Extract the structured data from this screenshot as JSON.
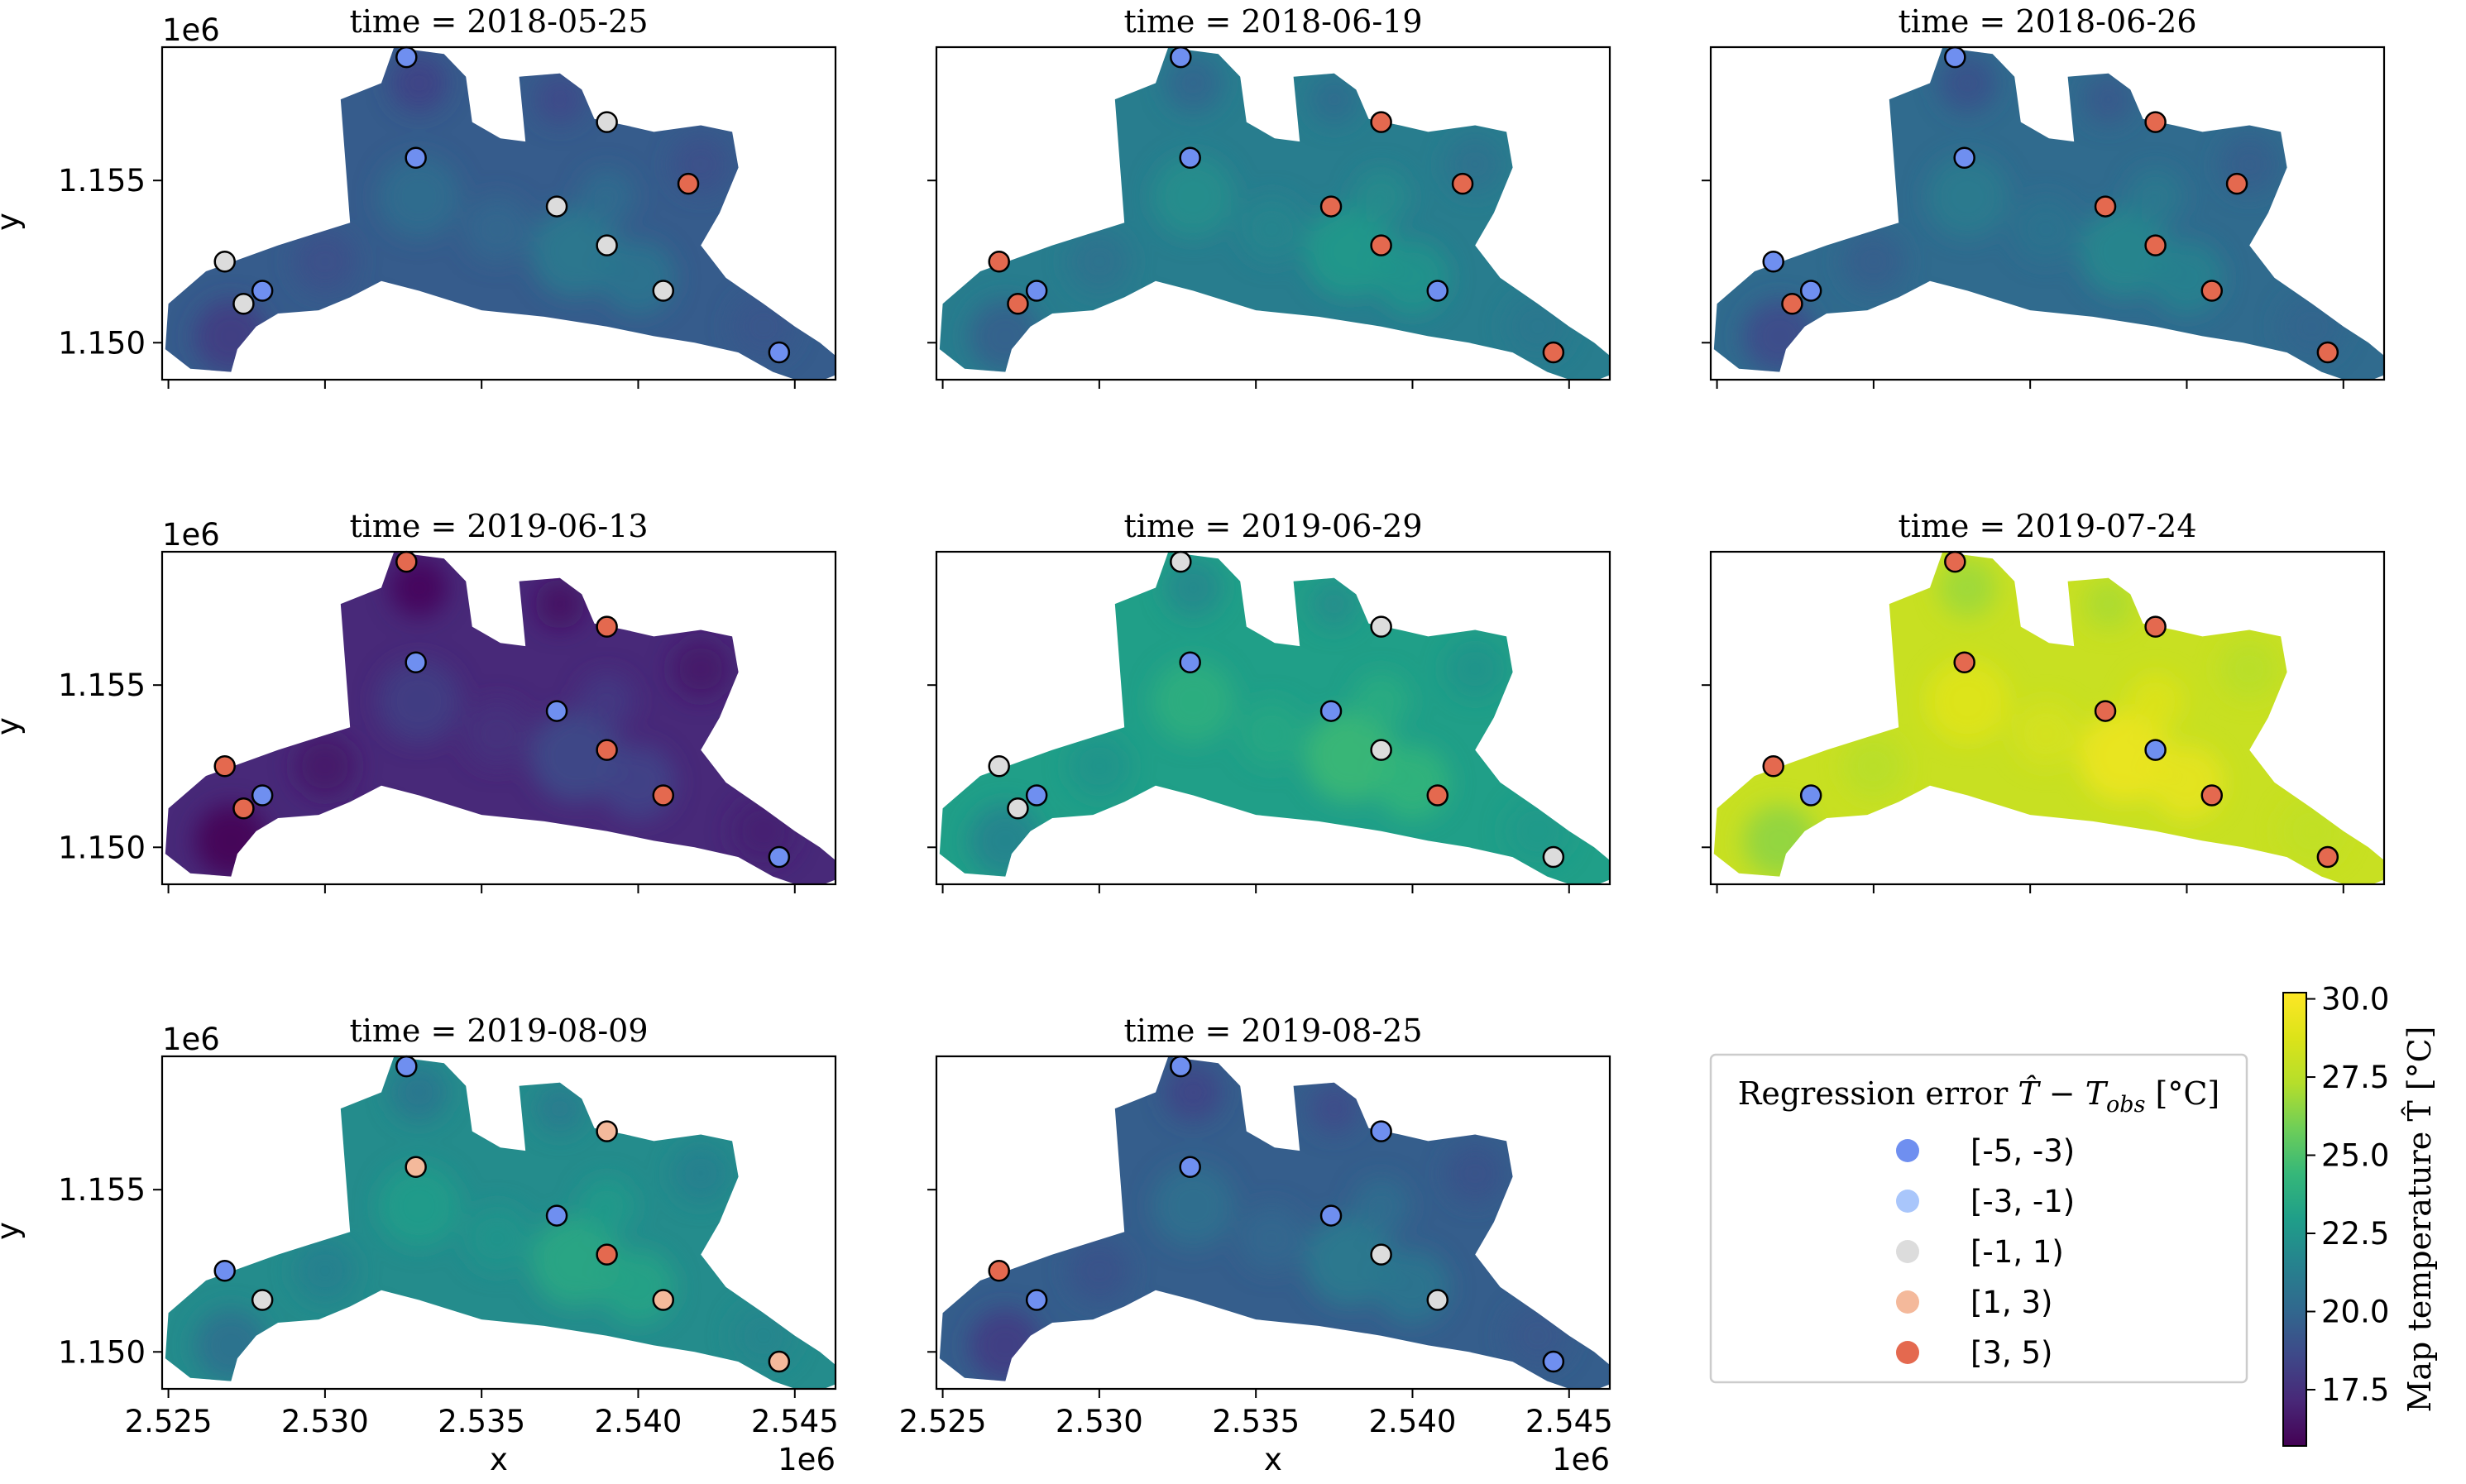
{
  "figure": {
    "colorbar": {
      "label": "Map temperature T̂ [°C]",
      "ticks": [
        "17.5",
        "20.0",
        "22.5",
        "25.0",
        "27.5",
        "30.0"
      ],
      "range": [
        15.7,
        30.2
      ],
      "colormap": "viridis"
    },
    "legend": {
      "title_prefix": "Regression error ",
      "title_math": "T̂ − T",
      "title_sub": "obs",
      "title_unit": " [°C]",
      "entries": [
        {
          "label": "[-5, -3)",
          "color": "#6f8ff0"
        },
        {
          "label": "[-3, -1)",
          "color": "#a9c6fb"
        },
        {
          "label": "[-1, 1)",
          "color": "#dcdcdc"
        },
        {
          "label": "[1, 3)",
          "color": "#f4b99b"
        },
        {
          "label": "[3, 5)",
          "color": "#e4694f"
        }
      ]
    },
    "axis_text": {
      "x_offset": "1e6",
      "y_offset": "1e6",
      "xlabel": "x",
      "ylabel": "y"
    }
  },
  "chart_data": {
    "type": "heatmap",
    "x_ticks": [
      "2.525",
      "2.530",
      "2.535",
      "2.540",
      "2.545"
    ],
    "x_tick_values": [
      2.525,
      2.53,
      2.535,
      2.54,
      2.545
    ],
    "y_ticks": [
      "1.150",
      "1.155"
    ],
    "y_tick_values": [
      1.15,
      1.155
    ],
    "xlim": [
      2.5248,
      2.5463
    ],
    "ylim": [
      1.14886,
      1.15911
    ],
    "station_xy": [
      [
        2.5268,
        1.1525
      ],
      [
        2.5274,
        1.1512
      ],
      [
        2.528,
        1.1516
      ],
      [
        2.5326,
        1.1588
      ],
      [
        2.5329,
        1.1557
      ],
      [
        2.5374,
        1.1542
      ],
      [
        2.539,
        1.1568
      ],
      [
        2.539,
        1.153
      ],
      [
        2.5408,
        1.1516
      ],
      [
        2.5416,
        1.1549
      ],
      [
        2.5445,
        1.1497
      ]
    ],
    "panels": [
      {
        "title": "time = 2018-05-25",
        "map_mean_c": 19.5,
        "station_error_class": [
          2,
          2,
          0,
          0,
          0,
          2,
          2,
          2,
          2,
          4,
          0
        ]
      },
      {
        "title": "time = 2018-06-19",
        "map_mean_c": 21.2,
        "station_error_class": [
          4,
          4,
          0,
          0,
          0,
          4,
          4,
          4,
          0,
          4,
          4
        ]
      },
      {
        "title": "time = 2018-06-26",
        "map_mean_c": 20.2,
        "station_error_class": [
          0,
          4,
          0,
          0,
          0,
          4,
          4,
          4,
          4,
          4,
          4
        ]
      },
      {
        "title": "time = 2019-06-13",
        "map_mean_c": 17.2,
        "station_error_class": [
          4,
          4,
          0,
          4,
          0,
          0,
          4,
          4,
          4,
          null,
          0
        ]
      },
      {
        "title": "time = 2019-06-29",
        "map_mean_c": 23.0,
        "station_error_class": [
          2,
          2,
          0,
          2,
          0,
          0,
          2,
          2,
          4,
          null,
          2
        ]
      },
      {
        "title": "time = 2019-07-24",
        "map_mean_c": 28.0,
        "station_error_class": [
          4,
          null,
          0,
          4,
          4,
          4,
          4,
          0,
          4,
          null,
          4
        ]
      },
      {
        "title": "time = 2019-08-09",
        "map_mean_c": 22.0,
        "station_error_class": [
          0,
          null,
          2,
          0,
          3,
          0,
          3,
          4,
          3,
          null,
          3
        ]
      },
      {
        "title": "time = 2019-08-25",
        "map_mean_c": 19.6,
        "station_error_class": [
          4,
          null,
          0,
          0,
          0,
          0,
          0,
          2,
          2,
          null,
          0
        ]
      }
    ]
  }
}
